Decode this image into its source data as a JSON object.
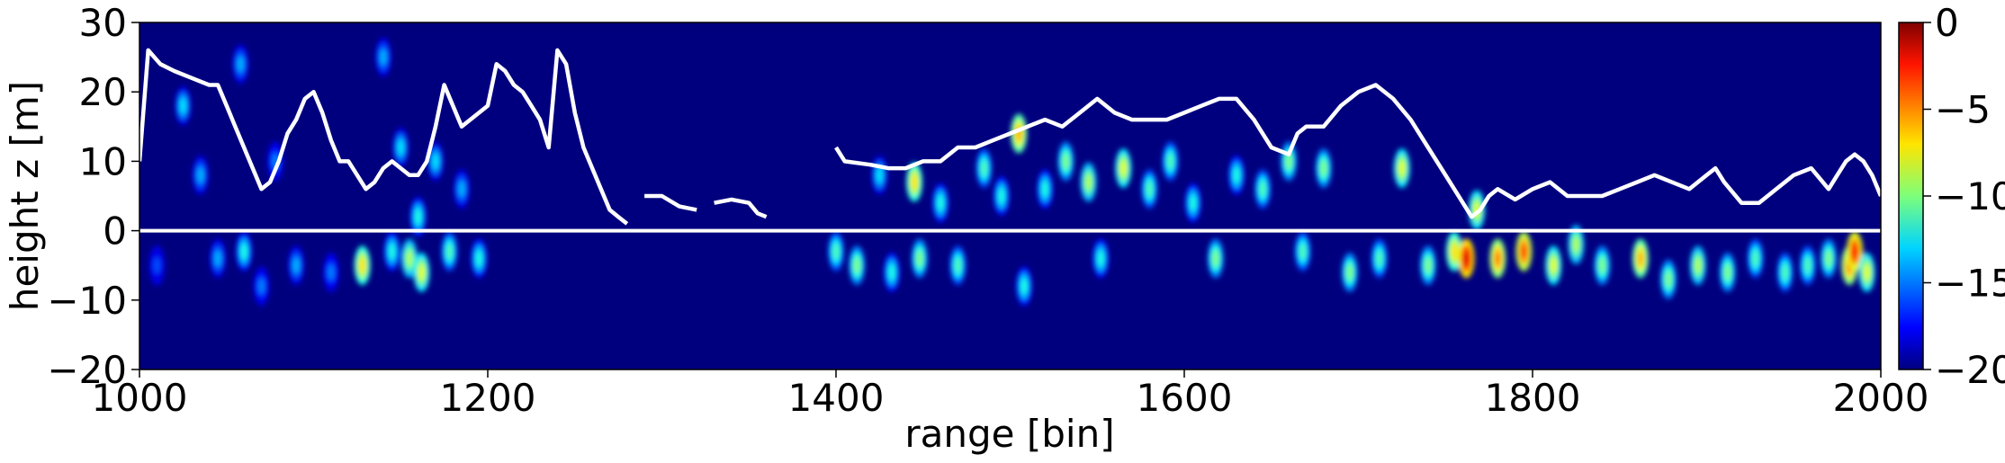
{
  "chart_data": {
    "type": "heatmap",
    "title": "",
    "xlabel": "range [bin]",
    "ylabel": "height z [m]",
    "xlim": [
      1000,
      2000
    ],
    "ylim": [
      -20,
      30
    ],
    "xticks": [
      1000,
      1200,
      1400,
      1600,
      1800,
      2000
    ],
    "yticks": [
      -20,
      -10,
      0,
      10,
      20,
      30
    ],
    "grid": false,
    "colormap": "jet",
    "colorbar": {
      "range": [
        -20,
        0
      ],
      "ticks": [
        0,
        -5,
        -10,
        -15,
        -20
      ]
    },
    "background_color": "#00007f",
    "reference_line": {
      "y": 0,
      "color": "#ffffff"
    },
    "hot_spots": [
      {
        "x": 1010,
        "y": -5,
        "v": -16
      },
      {
        "x": 1025,
        "y": 18,
        "v": -13
      },
      {
        "x": 1035,
        "y": 8,
        "v": -14
      },
      {
        "x": 1045,
        "y": -4,
        "v": -14
      },
      {
        "x": 1058,
        "y": 24,
        "v": -14
      },
      {
        "x": 1060,
        "y": -3,
        "v": -12
      },
      {
        "x": 1070,
        "y": -8,
        "v": -15
      },
      {
        "x": 1078,
        "y": 10,
        "v": -15
      },
      {
        "x": 1090,
        "y": -5,
        "v": -14
      },
      {
        "x": 1110,
        "y": -6,
        "v": -15
      },
      {
        "x": 1128,
        "y": -5,
        "v": -7
      },
      {
        "x": 1140,
        "y": 25,
        "v": -14
      },
      {
        "x": 1145,
        "y": -3,
        "v": -12
      },
      {
        "x": 1150,
        "y": 12,
        "v": -13
      },
      {
        "x": 1155,
        "y": -4,
        "v": -9
      },
      {
        "x": 1160,
        "y": 2,
        "v": -12
      },
      {
        "x": 1162,
        "y": -6,
        "v": -8
      },
      {
        "x": 1170,
        "y": 10,
        "v": -13
      },
      {
        "x": 1178,
        "y": -3,
        "v": -11
      },
      {
        "x": 1185,
        "y": 6,
        "v": -14
      },
      {
        "x": 1195,
        "y": -4,
        "v": -12
      },
      {
        "x": 1400,
        "y": -3,
        "v": -11
      },
      {
        "x": 1412,
        "y": -5,
        "v": -10
      },
      {
        "x": 1425,
        "y": 8,
        "v": -13
      },
      {
        "x": 1432,
        "y": -6,
        "v": -12
      },
      {
        "x": 1445,
        "y": 7,
        "v": -7
      },
      {
        "x": 1448,
        "y": -4,
        "v": -10
      },
      {
        "x": 1460,
        "y": 4,
        "v": -12
      },
      {
        "x": 1470,
        "y": -5,
        "v": -11
      },
      {
        "x": 1485,
        "y": 9,
        "v": -11
      },
      {
        "x": 1495,
        "y": 5,
        "v": -12
      },
      {
        "x": 1505,
        "y": 14,
        "v": -6
      },
      {
        "x": 1508,
        "y": -8,
        "v": -12
      },
      {
        "x": 1520,
        "y": 6,
        "v": -12
      },
      {
        "x": 1532,
        "y": 10,
        "v": -10
      },
      {
        "x": 1545,
        "y": 7,
        "v": -9
      },
      {
        "x": 1552,
        "y": -4,
        "v": -12
      },
      {
        "x": 1565,
        "y": 9,
        "v": -8
      },
      {
        "x": 1580,
        "y": 6,
        "v": -11
      },
      {
        "x": 1592,
        "y": 10,
        "v": -11
      },
      {
        "x": 1605,
        "y": 4,
        "v": -12
      },
      {
        "x": 1618,
        "y": -4,
        "v": -10
      },
      {
        "x": 1630,
        "y": 8,
        "v": -12
      },
      {
        "x": 1645,
        "y": 6,
        "v": -11
      },
      {
        "x": 1660,
        "y": 10,
        "v": -10
      },
      {
        "x": 1668,
        "y": -3,
        "v": -11
      },
      {
        "x": 1680,
        "y": 9,
        "v": -10
      },
      {
        "x": 1695,
        "y": -6,
        "v": -10
      },
      {
        "x": 1712,
        "y": -4,
        "v": -11
      },
      {
        "x": 1725,
        "y": 9,
        "v": -8
      },
      {
        "x": 1740,
        "y": -5,
        "v": -10
      },
      {
        "x": 1755,
        "y": -3,
        "v": -7
      },
      {
        "x": 1762,
        "y": -4,
        "v": -2
      },
      {
        "x": 1768,
        "y": 3,
        "v": -8
      },
      {
        "x": 1780,
        "y": -4,
        "v": -5
      },
      {
        "x": 1795,
        "y": -3,
        "v": -4
      },
      {
        "x": 1812,
        "y": -5,
        "v": -8
      },
      {
        "x": 1825,
        "y": -2,
        "v": -9
      },
      {
        "x": 1840,
        "y": -5,
        "v": -10
      },
      {
        "x": 1862,
        "y": -4,
        "v": -6
      },
      {
        "x": 1878,
        "y": -7,
        "v": -10
      },
      {
        "x": 1895,
        "y": -5,
        "v": -9
      },
      {
        "x": 1912,
        "y": -6,
        "v": -10
      },
      {
        "x": 1928,
        "y": -4,
        "v": -11
      },
      {
        "x": 1945,
        "y": -6,
        "v": -11
      },
      {
        "x": 1958,
        "y": -5,
        "v": -11
      },
      {
        "x": 1970,
        "y": -4,
        "v": -10
      },
      {
        "x": 1982,
        "y": -5,
        "v": -5
      },
      {
        "x": 1985,
        "y": -3,
        "v": -3
      },
      {
        "x": 1992,
        "y": -6,
        "v": -8
      }
    ],
    "series": [
      {
        "color": "#ffffff",
        "segments": [
          [
            [
              1000,
              10
            ],
            [
              1005,
              26
            ],
            [
              1012,
              24
            ],
            [
              1020,
              23
            ],
            [
              1030,
              22
            ],
            [
              1040,
              21
            ],
            [
              1045,
              21
            ],
            [
              1050,
              18
            ],
            [
              1055,
              15
            ],
            [
              1060,
              12
            ],
            [
              1065,
              9
            ],
            [
              1070,
              6
            ],
            [
              1075,
              7
            ],
            [
              1080,
              10
            ],
            [
              1085,
              14
            ],
            [
              1090,
              16
            ],
            [
              1095,
              19
            ],
            [
              1100,
              20
            ],
            [
              1105,
              17
            ],
            [
              1110,
              13
            ],
            [
              1115,
              10
            ],
            [
              1120,
              10
            ],
            [
              1125,
              8
            ],
            [
              1130,
              6
            ],
            [
              1135,
              7
            ],
            [
              1140,
              9
            ],
            [
              1145,
              10
            ],
            [
              1150,
              9
            ],
            [
              1155,
              8
            ],
            [
              1160,
              8
            ],
            [
              1165,
              10
            ],
            [
              1170,
              15
            ],
            [
              1175,
              21
            ],
            [
              1180,
              18
            ],
            [
              1185,
              15
            ],
            [
              1190,
              16
            ],
            [
              1195,
              17
            ],
            [
              1200,
              18
            ],
            [
              1205,
              24
            ],
            [
              1210,
              23
            ],
            [
              1215,
              21
            ],
            [
              1220,
              20
            ],
            [
              1225,
              18
            ],
            [
              1230,
              16
            ],
            [
              1235,
              12
            ],
            [
              1240,
              26
            ],
            [
              1245,
              24
            ],
            [
              1250,
              17
            ],
            [
              1255,
              12
            ],
            [
              1260,
              9
            ],
            [
              1265,
              6
            ],
            [
              1270,
              3
            ],
            [
              1275,
              2
            ],
            [
              1280,
              1
            ]
          ],
          [
            [
              1290,
              5
            ],
            [
              1300,
              5
            ],
            [
              1310,
              3.5
            ],
            [
              1320,
              3
            ]
          ],
          [
            [
              1330,
              4
            ],
            [
              1340,
              4.5
            ],
            [
              1350,
              4
            ],
            [
              1355,
              2.5
            ],
            [
              1360,
              2
            ]
          ],
          [
            [
              1400,
              12
            ],
            [
              1405,
              10
            ],
            [
              1420,
              9.5
            ],
            [
              1430,
              9
            ],
            [
              1440,
              9
            ],
            [
              1450,
              10
            ],
            [
              1460,
              10
            ],
            [
              1470,
              12
            ],
            [
              1480,
              12
            ],
            [
              1490,
              13
            ],
            [
              1500,
              14
            ],
            [
              1510,
              15
            ],
            [
              1520,
              16
            ],
            [
              1530,
              15
            ],
            [
              1540,
              17
            ],
            [
              1550,
              19
            ],
            [
              1560,
              17
            ],
            [
              1570,
              16
            ],
            [
              1580,
              16
            ],
            [
              1590,
              16
            ],
            [
              1600,
              17
            ],
            [
              1610,
              18
            ],
            [
              1620,
              19
            ],
            [
              1630,
              19
            ],
            [
              1640,
              16
            ],
            [
              1650,
              12
            ],
            [
              1660,
              11
            ],
            [
              1665,
              14
            ],
            [
              1670,
              15
            ],
            [
              1680,
              15
            ],
            [
              1690,
              18
            ],
            [
              1700,
              20
            ],
            [
              1710,
              21
            ],
            [
              1720,
              19
            ],
            [
              1730,
              16
            ],
            [
              1740,
              12
            ],
            [
              1750,
              8
            ],
            [
              1760,
              4
            ],
            [
              1765,
              2
            ],
            [
              1770,
              3
            ],
            [
              1775,
              5
            ],
            [
              1780,
              6
            ],
            [
              1790,
              4.5
            ],
            [
              1800,
              6
            ],
            [
              1810,
              7
            ],
            [
              1820,
              5
            ],
            [
              1830,
              5
            ],
            [
              1840,
              5
            ],
            [
              1850,
              6
            ],
            [
              1860,
              7
            ],
            [
              1870,
              8
            ],
            [
              1880,
              7
            ],
            [
              1890,
              6
            ],
            [
              1900,
              8
            ],
            [
              1905,
              9
            ],
            [
              1910,
              7
            ],
            [
              1920,
              4
            ],
            [
              1930,
              4
            ],
            [
              1940,
              6
            ],
            [
              1950,
              8
            ],
            [
              1960,
              9
            ],
            [
              1970,
              6
            ],
            [
              1975,
              8
            ],
            [
              1980,
              10
            ],
            [
              1985,
              11
            ],
            [
              1990,
              10
            ],
            [
              1995,
              8
            ],
            [
              2000,
              5
            ]
          ]
        ]
      }
    ]
  }
}
